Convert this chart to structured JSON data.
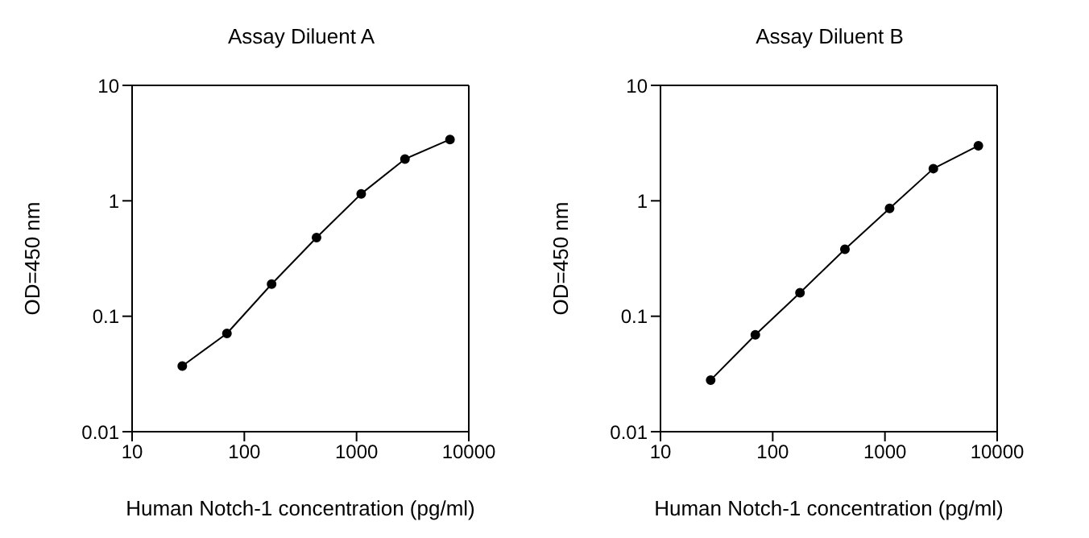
{
  "chart_data": [
    {
      "type": "line",
      "title": "Assay Diluent A",
      "xlabel": "Human Notch-1 concentration (pg/ml)",
      "ylabel": "OD=450 nm",
      "x": [
        28,
        70,
        175,
        440,
        1100,
        2700,
        6800
      ],
      "series": [
        {
          "color": "#000000",
          "values": [
            0.037,
            0.071,
            0.19,
            0.48,
            1.15,
            2.3,
            3.4
          ]
        }
      ],
      "xlim": [
        10,
        10000
      ],
      "xticks": [
        10,
        100,
        1000,
        10000
      ],
      "ylim": [
        0.01,
        10
      ],
      "yticks": [
        0.01,
        0.1,
        1,
        10
      ],
      "log": "xy",
      "grid": false,
      "legend": false,
      "marker": "circle",
      "line_style": "solid"
    },
    {
      "type": "line",
      "title": "Assay Diluent B",
      "xlabel": "Human Notch-1 concentration (pg/ml)",
      "ylabel": "OD=450 nm",
      "x": [
        28,
        70,
        175,
        440,
        1100,
        2700,
        6800
      ],
      "series": [
        {
          "color": "#000000",
          "values": [
            0.028,
            0.069,
            0.16,
            0.38,
            0.86,
            1.9,
            3.0
          ]
        }
      ],
      "xlim": [
        10,
        10000
      ],
      "xticks": [
        10,
        100,
        1000,
        10000
      ],
      "ylim": [
        0.01,
        10
      ],
      "yticks": [
        0.01,
        0.1,
        1,
        10
      ],
      "log": "xy",
      "grid": false,
      "legend": false,
      "marker": "circle",
      "line_style": "solid"
    }
  ]
}
